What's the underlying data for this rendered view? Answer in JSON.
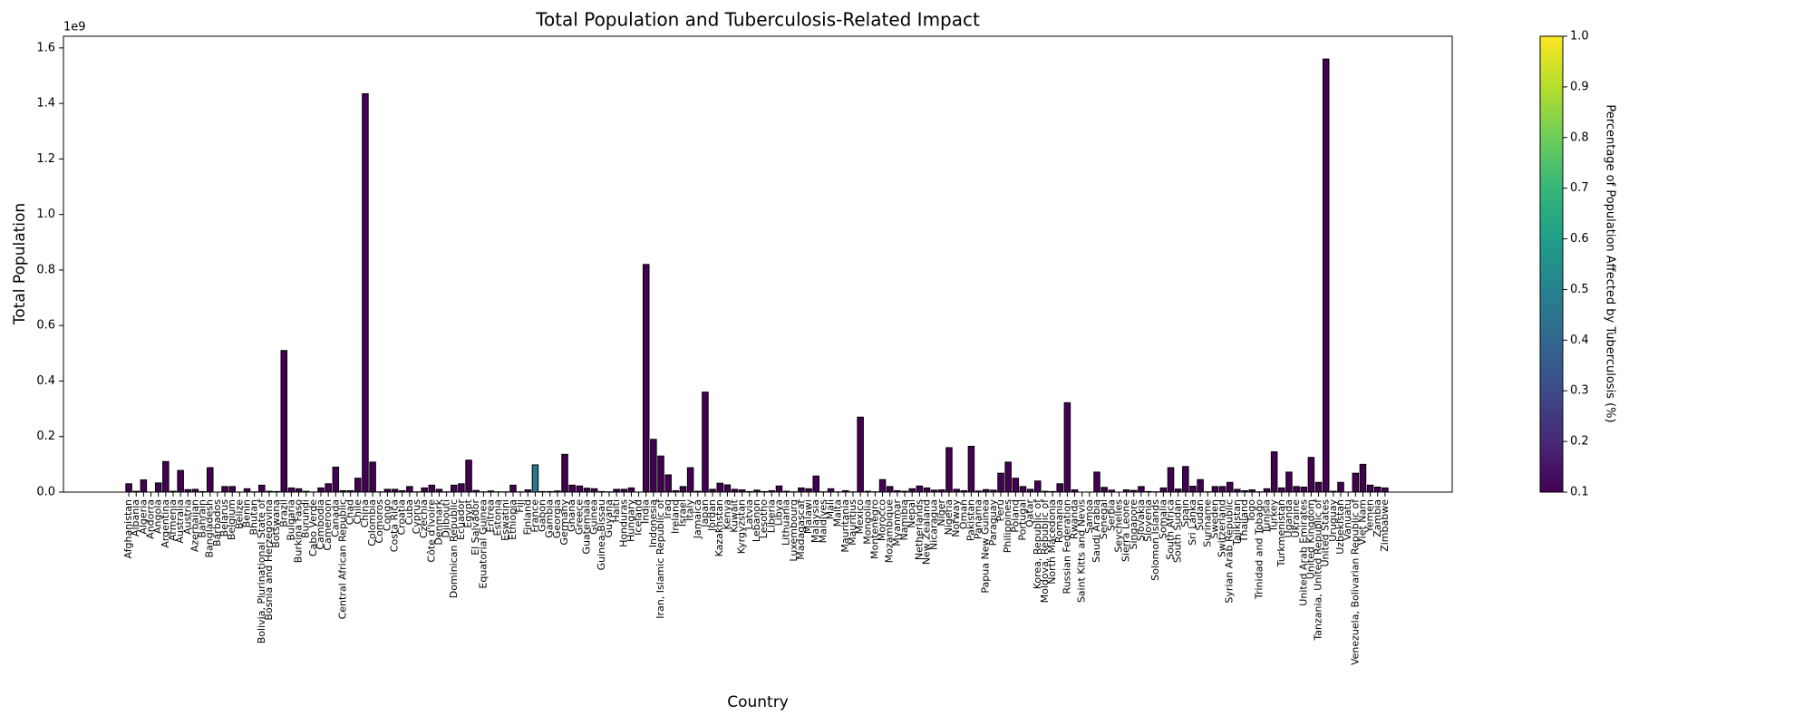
{
  "chart_data": {
    "type": "bar",
    "title": "Total Population and Tuberculosis-Related Impact",
    "x_label": "Country",
    "y_label": "Total Population",
    "y_offset_label": "1e9",
    "colorbar_label": "Percentage of Population Affected by Tuberculosis (%)",
    "colormap": "viridis",
    "categories": [
      "Afghanistan",
      "Albania",
      "Algeria",
      "Andorra",
      "Angola",
      "Argentina",
      "Armenia",
      "Australia",
      "Austria",
      "Azerbaijan",
      "Bahrain",
      "Bangladesh",
      "Barbados",
      "Belarus",
      "Belgium",
      "Belize",
      "Benin",
      "Bhutan",
      "Bolivia, Plurinational State of",
      "Bosnia and Herzegovina",
      "Botswana",
      "Brazil",
      "Bulgaria",
      "Burkina Faso",
      "Burundi",
      "Cabo Verde",
      "Cambodia",
      "Cameroon",
      "Canada",
      "Central African Republic",
      "Chad",
      "Chile",
      "China",
      "Colombia",
      "Comoros",
      "Congo",
      "Costa Rica",
      "Croatia",
      "Cuba",
      "Cyprus",
      "Czechia",
      "Côte d'Ivoire",
      "Denmark",
      "Djibouti",
      "Dominican Republic",
      "Ecuador",
      "Egypt",
      "El Salvador",
      "Equatorial Guinea",
      "Eritrea",
      "Estonia",
      "Eswatini",
      "Ethiopia",
      "Fiji",
      "Finland",
      "France",
      "Gabon",
      "Gambia",
      "Georgia",
      "Germany",
      "Ghana",
      "Greece",
      "Guatemala",
      "Guinea",
      "Guinea-Bissau",
      "Guyana",
      "Haiti",
      "Honduras",
      "Hungary",
      "Iceland",
      "India",
      "Indonesia",
      "Iran, Islamic Republic of",
      "Iraq",
      "Ireland",
      "Israel",
      "Italy",
      "Jamaica",
      "Japan",
      "Jordan",
      "Kazakhstan",
      "Kenya",
      "Kuwait",
      "Kyrgyzstan",
      "Latvia",
      "Lebanon",
      "Lesotho",
      "Liberia",
      "Libya",
      "Lithuania",
      "Luxembourg",
      "Madagascar",
      "Malawi",
      "Malaysia",
      "Maldives",
      "Mali",
      "Malta",
      "Mauritania",
      "Mauritius",
      "Mexico",
      "Mongolia",
      "Montenegro",
      "Morocco",
      "Mozambique",
      "Myanmar",
      "Namibia",
      "Nepal",
      "Netherlands",
      "New Zealand",
      "Nicaragua",
      "Niger",
      "Nigeria",
      "Norway",
      "Oman",
      "Pakistan",
      "Panama",
      "Papua New Guinea",
      "Paraguay",
      "Peru",
      "Philippines",
      "Poland",
      "Portugal",
      "Qatar",
      "Korea, Republic of",
      "Moldova, Republic of",
      "North Macedonia",
      "Romania",
      "Russian Federation",
      "Rwanda",
      "Saint Kitts and Nevis",
      "Samoa",
      "Saudi Arabia",
      "Senegal",
      "Serbia",
      "Seychelles",
      "Sierra Leone",
      "Singapore",
      "Slovakia",
      "Slovenia",
      "Solomon Islands",
      "Somalia",
      "South Africa",
      "South Sudan",
      "Spain",
      "Sri Lanka",
      "Sudan",
      "Suriname",
      "Sweden",
      "Switzerland",
      "Syrian Arab Republic",
      "Tajikistan",
      "Thailand",
      "Togo",
      "Trinidad and Tobago",
      "Tunisia",
      "Turkey",
      "Turkmenistan",
      "Uganda",
      "Ukraine",
      "United Arab Emirates",
      "United Kingdom",
      "Tanzania, United Republic of",
      "United States",
      "Uruguay",
      "Uzbekistan",
      "Vanuatu",
      "Venezuela, Bolivarian Republic of",
      "Viet Nam",
      "Yemen",
      "Zambia",
      "Zimbabwe"
    ],
    "values": [
      30000000,
      3000000,
      44000000,
      80000,
      33000000,
      110000000,
      3000000,
      78000000,
      9000000,
      10000000,
      2000000,
      88000000,
      300000,
      20000000,
      20000000,
      400000,
      12000000,
      1000000,
      25000000,
      3000000,
      2000000,
      510000000,
      15000000,
      12000000,
      3000000,
      500000,
      15000000,
      30000000,
      90000000,
      5000000,
      5000000,
      50000000,
      1435000000,
      108000000,
      1000000,
      10000000,
      10000000,
      5000000,
      20000000,
      1000000,
      15000000,
      25000000,
      10000000,
      1000000,
      25000000,
      30000000,
      115000000,
      6000000,
      1000000,
      4000000,
      1000000,
      1000000,
      25000000,
      1000000,
      8000000,
      98000000,
      2000000,
      2000000,
      4000000,
      136000000,
      25000000,
      22000000,
      14000000,
      12000000,
      2000000,
      1000000,
      10000000,
      10000000,
      15000000,
      300000,
      820000000,
      190000000,
      130000000,
      62000000,
      5000000,
      20000000,
      88000000,
      3000000,
      360000000,
      10000000,
      32000000,
      26000000,
      10000000,
      8000000,
      2000000,
      7000000,
      2000000,
      5000000,
      22000000,
      3000000,
      1000000,
      15000000,
      12000000,
      58000000,
      1000000,
      12000000,
      1000000,
      5000000,
      1000000,
      270000000,
      3000000,
      1000000,
      45000000,
      20000000,
      5000000,
      3000000,
      12000000,
      22000000,
      15000000,
      7000000,
      8000000,
      160000000,
      10000000,
      5000000,
      165000000,
      4000000,
      9000000,
      7000000,
      68000000,
      108000000,
      50000000,
      20000000,
      10000000,
      40000000,
      3000000,
      2000000,
      30000000,
      322000000,
      8000000,
      50000,
      200000,
      72000000,
      17000000,
      7000000,
      100000,
      8000000,
      6000000,
      20000000,
      2000000,
      1000000,
      15000000,
      88000000,
      11000000,
      92000000,
      21000000,
      45000000,
      1000000,
      20000000,
      20000000,
      35000000,
      10000000,
      5000000,
      8000000,
      1000000,
      12000000,
      145000000,
      15000000,
      72000000,
      20000000,
      18000000,
      125000000,
      35000000,
      1560000000,
      3000000,
      35000000,
      300000,
      68000000,
      100000000,
      25000000,
      18000000,
      15000000
    ],
    "color_values": [
      0.1,
      0.1,
      0.1,
      0.1,
      0.1,
      0.1,
      0.1,
      0.1,
      0.1,
      0.1,
      0.1,
      0.1,
      0.1,
      0.1,
      0.1,
      0.1,
      0.1,
      0.1,
      0.1,
      0.1,
      0.1,
      0.1,
      0.1,
      0.1,
      0.1,
      0.1,
      0.1,
      0.1,
      0.1,
      0.1,
      0.1,
      0.1,
      0.1,
      0.1,
      0.1,
      0.1,
      0.1,
      0.1,
      0.1,
      0.1,
      0.1,
      0.1,
      0.1,
      0.1,
      0.1,
      0.1,
      0.1,
      0.1,
      0.1,
      0.1,
      0.1,
      0.1,
      0.1,
      0.1,
      0.1,
      0.46,
      0.1,
      0.1,
      0.1,
      0.1,
      0.1,
      0.1,
      0.1,
      0.1,
      0.1,
      0.1,
      0.1,
      0.1,
      0.1,
      0.1,
      0.1,
      0.1,
      0.1,
      0.1,
      0.1,
      0.1,
      0.1,
      0.1,
      0.1,
      0.1,
      0.1,
      0.1,
      0.1,
      0.1,
      0.1,
      0.1,
      0.1,
      0.1,
      0.1,
      0.1,
      0.1,
      0.1,
      0.1,
      0.1,
      0.1,
      0.1,
      0.1,
      0.1,
      0.1,
      0.1,
      0.1,
      0.1,
      0.1,
      0.1,
      0.1,
      0.1,
      0.1,
      0.1,
      0.1,
      0.1,
      0.1,
      0.1,
      0.1,
      0.1,
      0.1,
      0.1,
      0.1,
      0.1,
      0.1,
      0.1,
      0.1,
      0.1,
      0.1,
      0.1,
      0.1,
      0.1,
      0.1,
      0.1,
      0.1,
      0.1,
      0.1,
      0.1,
      0.1,
      0.1,
      0.1,
      0.1,
      0.1,
      0.1,
      0.1,
      0.1,
      0.1,
      0.1,
      0.1,
      0.1,
      0.1,
      0.1,
      0.1,
      0.1,
      0.1,
      0.1,
      0.1,
      0.1,
      0.1,
      0.1,
      0.1,
      0.1,
      0.1,
      0.1,
      0.1,
      0.1,
      0.1,
      0.1,
      0.1,
      0.1,
      0.1,
      0.1,
      0.1,
      0.1,
      0.1,
      0.1,
      0.1
    ],
    "ylim": [
      0,
      1642000000
    ],
    "yticks": [
      {
        "value": 0,
        "label": "0.0"
      },
      {
        "value": 200000000,
        "label": "0.2"
      },
      {
        "value": 400000000,
        "label": "0.4"
      },
      {
        "value": 600000000,
        "label": "0.6"
      },
      {
        "value": 800000000,
        "label": "0.8"
      },
      {
        "value": 1000000000,
        "label": "1.0"
      },
      {
        "value": 1200000000,
        "label": "1.2"
      },
      {
        "value": 1400000000,
        "label": "1.4"
      },
      {
        "value": 1600000000,
        "label": "1.6"
      }
    ],
    "clim": [
      0.1,
      1.0
    ],
    "cticks": [
      0.1,
      0.2,
      0.3,
      0.4,
      0.5,
      0.6,
      0.7,
      0.8,
      0.9,
      {
        "value": 1.0,
        "label": "1.0"
      }
    ],
    "edge_color": "#000000",
    "grid": false
  }
}
